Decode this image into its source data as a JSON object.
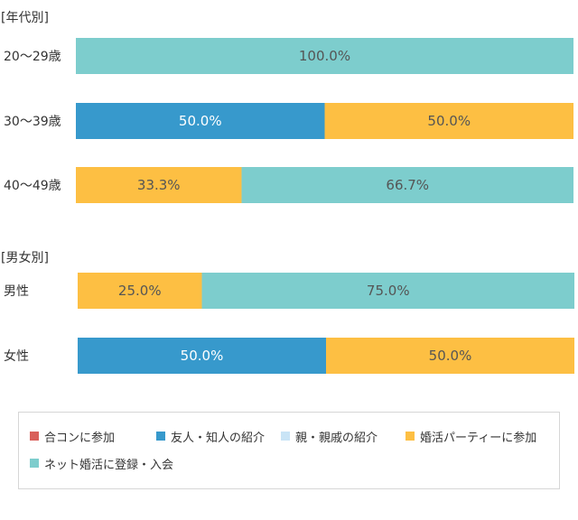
{
  "chart_data": {
    "type": "bar",
    "orientation": "horizontal",
    "stacked": true,
    "percent": true,
    "xlim": [
      0,
      100
    ],
    "grid": false,
    "legend_position": "bottom",
    "series": [
      {
        "name": "合コンに参加",
        "color": "#d9605a"
      },
      {
        "name": "友人・知人の紹介",
        "color": "#3799cc"
      },
      {
        "name": "親・親戚の紹介",
        "color": "#c9e4f6"
      },
      {
        "name": "婚活パーティーに参加",
        "color": "#fdbf43"
      },
      {
        "name": "ネット婚活に登録・入会",
        "color": "#7dcdcd"
      }
    ],
    "groups": [
      {
        "title": "[年代別]",
        "rows": [
          {
            "label": "20〜29歳",
            "values": [
              0,
              0,
              0,
              0,
              100
            ],
            "value_labels": [
              "",
              "",
              "",
              "",
              "100.0%"
            ]
          },
          {
            "label": "30〜39歳",
            "values": [
              0,
              50,
              0,
              50,
              0
            ],
            "value_labels": [
              "",
              "50.0%",
              "",
              "50.0%",
              ""
            ]
          },
          {
            "label": "40〜49歳",
            "values": [
              0,
              0,
              0,
              33.3,
              66.7
            ],
            "value_labels": [
              "",
              "",
              "",
              "33.3%",
              "66.7%"
            ]
          }
        ]
      },
      {
        "title": "[男女別]",
        "rows": [
          {
            "label": "男性",
            "values": [
              0,
              0,
              0,
              25,
              75
            ],
            "value_labels": [
              "",
              "",
              "",
              "25.0%",
              "75.0%"
            ]
          },
          {
            "label": "女性",
            "values": [
              0,
              50,
              0,
              50,
              0
            ],
            "value_labels": [
              "",
              "50.0%",
              "",
              "50.0%",
              ""
            ]
          }
        ]
      }
    ]
  }
}
